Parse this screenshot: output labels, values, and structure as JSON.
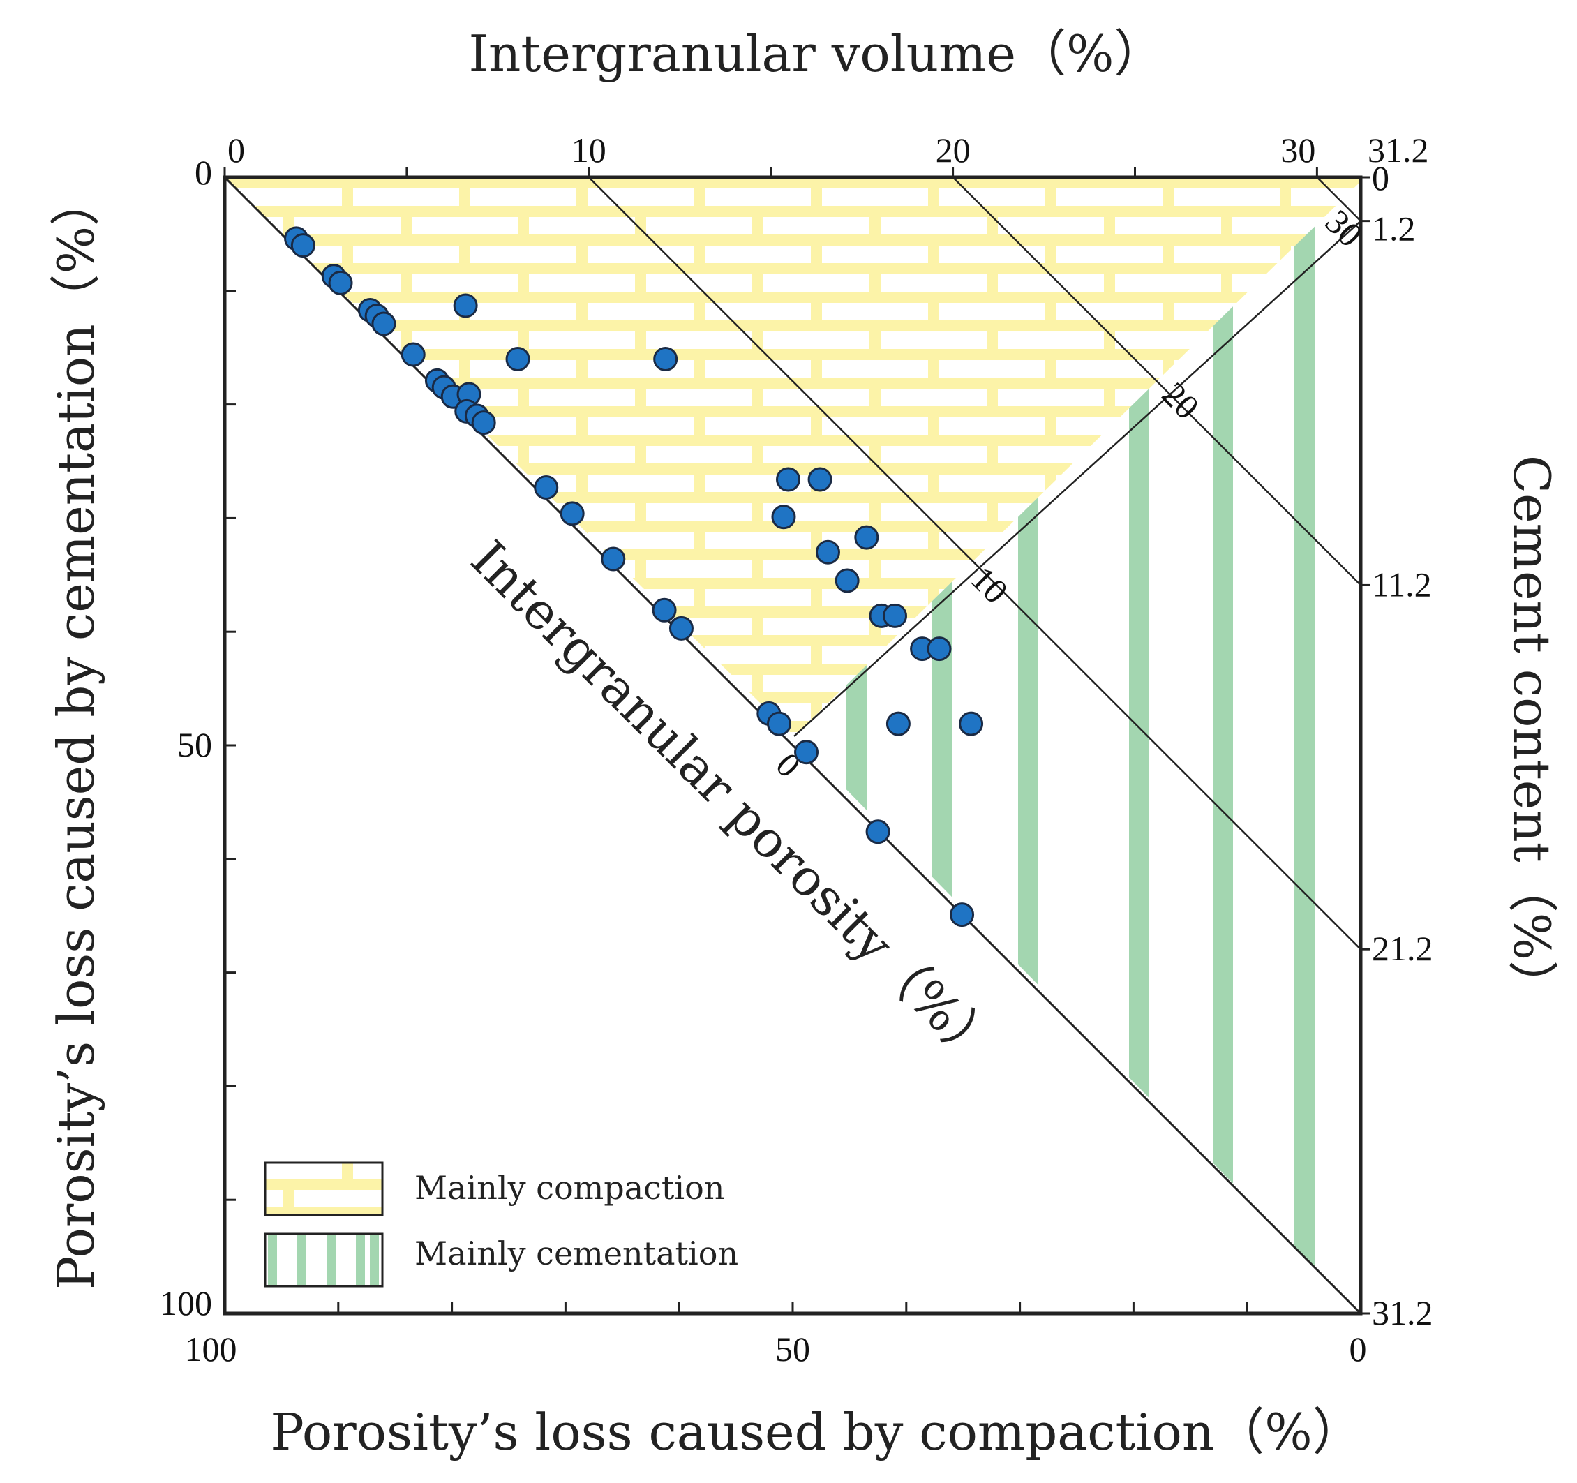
{
  "chart_data": {
    "type": "scatter",
    "title": "",
    "top_axis": {
      "label": "Intergranular  volume（%）",
      "ticks": [
        0,
        10,
        20,
        30,
        31.2
      ],
      "range": [
        0,
        31.2
      ]
    },
    "bottom_axis": {
      "label": "Porosity’s loss caused by compaction（%）",
      "ticks": [
        100,
        50,
        0
      ],
      "range": [
        100,
        0
      ]
    },
    "left_axis": {
      "label": "Porosity’s loss caused by cementation（%）",
      "ticks": [
        0,
        50,
        100
      ],
      "range": [
        0,
        100
      ]
    },
    "right_axis": {
      "label": "Cement  content（%）",
      "ticks": [
        0,
        1.2,
        11.2,
        21.2,
        31.2
      ],
      "range": [
        0,
        31.2
      ]
    },
    "diagonal_label": "Intergranular  porosity（%）",
    "porosity_isolines": [
      "0",
      "10",
      "20",
      "30"
    ],
    "legend": [
      {
        "name": "Mainly compaction",
        "color": "#fcf3a8",
        "pattern": "brick"
      },
      {
        "name": "Mainly cementation",
        "color": "#a3d6b0",
        "pattern": "vertical-stripes"
      }
    ],
    "point_color": "#1f74c4",
    "series": [
      {
        "name": "Samples",
        "points": [
          {
            "compaction": 93.7,
            "cementation": 5.4
          },
          {
            "compaction": 93.1,
            "cementation": 6.0
          },
          {
            "compaction": 90.4,
            "cementation": 8.7
          },
          {
            "compaction": 89.8,
            "cementation": 9.3
          },
          {
            "compaction": 87.2,
            "cementation": 11.7
          },
          {
            "compaction": 86.6,
            "cementation": 12.2
          },
          {
            "compaction": 86.0,
            "cementation": 12.9
          },
          {
            "compaction": 78.8,
            "cementation": 11.3
          },
          {
            "compaction": 83.4,
            "cementation": 15.6
          },
          {
            "compaction": 81.3,
            "cementation": 17.9
          },
          {
            "compaction": 80.7,
            "cementation": 18.5
          },
          {
            "compaction": 79.9,
            "cementation": 19.3
          },
          {
            "compaction": 78.5,
            "cementation": 19.1
          },
          {
            "compaction": 78.7,
            "cementation": 20.6
          },
          {
            "compaction": 77.8,
            "cementation": 21.0
          },
          {
            "compaction": 77.2,
            "cementation": 21.6
          },
          {
            "compaction": 74.2,
            "cementation": 16.0
          },
          {
            "compaction": 61.2,
            "cementation": 16.0
          },
          {
            "compaction": 71.7,
            "cementation": 27.3
          },
          {
            "compaction": 69.4,
            "cementation": 29.6
          },
          {
            "compaction": 65.8,
            "cementation": 33.6
          },
          {
            "compaction": 61.3,
            "cementation": 38.1
          },
          {
            "compaction": 59.8,
            "cementation": 39.7
          },
          {
            "compaction": 50.4,
            "cementation": 26.6
          },
          {
            "compaction": 47.6,
            "cementation": 26.6
          },
          {
            "compaction": 50.8,
            "cementation": 29.9
          },
          {
            "compaction": 46.9,
            "cementation": 33.0
          },
          {
            "compaction": 43.5,
            "cementation": 31.7
          },
          {
            "compaction": 45.2,
            "cementation": 35.5
          },
          {
            "compaction": 42.2,
            "cementation": 38.6
          },
          {
            "compaction": 41.0,
            "cementation": 38.6
          },
          {
            "compaction": 38.6,
            "cementation": 41.5
          },
          {
            "compaction": 37.1,
            "cementation": 41.5
          },
          {
            "compaction": 40.7,
            "cementation": 48.1
          },
          {
            "compaction": 34.3,
            "cementation": 48.1
          },
          {
            "compaction": 52.1,
            "cementation": 47.2
          },
          {
            "compaction": 51.2,
            "cementation": 48.1
          },
          {
            "compaction": 48.8,
            "cementation": 50.6
          },
          {
            "compaction": 42.5,
            "cementation": 57.6
          },
          {
            "compaction": 35.1,
            "cementation": 64.9
          }
        ]
      }
    ]
  }
}
